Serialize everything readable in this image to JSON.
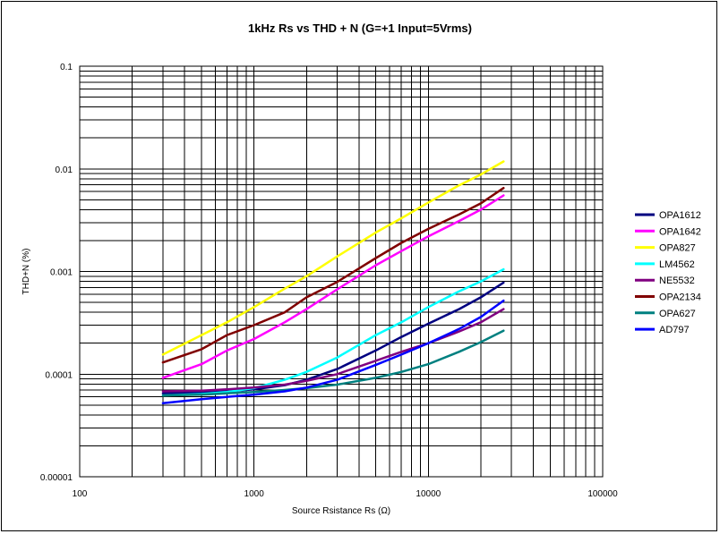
{
  "chart_data": {
    "type": "line",
    "title": "1kHz Rs vs THD + N (G=+1 Input=5Vrms)",
    "xlabel": "Source Rsistance Rs (Ω)",
    "ylabel": "THD+N (%)",
    "xscale": "log",
    "yscale": "log",
    "xlim": [
      100,
      100000
    ],
    "ylim": [
      1e-05,
      0.1
    ],
    "grid": true,
    "legend_position": "right",
    "x_ticks": [
      "100",
      "1000",
      "10000",
      "100000"
    ],
    "y_ticks": [
      "0.00001",
      "0.0001",
      "0.001",
      "0.01",
      "0.1"
    ],
    "x": [
      300,
      500,
      700,
      1000,
      1500,
      2000,
      3000,
      5000,
      7000,
      10000,
      15000,
      20000,
      27000
    ],
    "series": [
      {
        "name": "OPA1612",
        "color": "#000080",
        "values": [
          6.5e-05,
          6.6e-05,
          6.8e-05,
          7.1e-05,
          7.8e-05,
          8.8e-05,
          0.000112,
          0.00017,
          0.00023,
          0.00031,
          0.00043,
          0.00056,
          0.00078
        ]
      },
      {
        "name": "OPA1642",
        "color": "#ff00ff",
        "values": [
          9.2e-05,
          0.000125,
          0.00017,
          0.00022,
          0.00032,
          0.00043,
          0.00067,
          0.00115,
          0.00158,
          0.0022,
          0.0031,
          0.004,
          0.0055
        ]
      },
      {
        "name": "OPA827",
        "color": "#ffff00",
        "values": [
          0.000155,
          0.00024,
          0.00032,
          0.00045,
          0.00068,
          0.0009,
          0.0014,
          0.0024,
          0.0033,
          0.0047,
          0.0069,
          0.0088,
          0.0118
        ]
      },
      {
        "name": "LM4562",
        "color": "#00ffff",
        "values": [
          6.2e-05,
          6.4e-05,
          6.7e-05,
          7.3e-05,
          8.8e-05,
          0.000105,
          0.000145,
          0.00024,
          0.00032,
          0.00045,
          0.00064,
          0.0008,
          0.00105
        ]
      },
      {
        "name": "NE5532",
        "color": "#800080",
        "values": [
          6.8e-05,
          6.9e-05,
          7.1e-05,
          7.4e-05,
          7.9e-05,
          8.6e-05,
          0.0001,
          0.000135,
          0.000165,
          0.0002,
          0.00026,
          0.00032,
          0.00043
        ]
      },
      {
        "name": "OPA2134",
        "color": "#800000",
        "values": [
          0.00013,
          0.000175,
          0.00024,
          0.0003,
          0.0004,
          0.00056,
          0.00079,
          0.00135,
          0.0019,
          0.0026,
          0.0036,
          0.0046,
          0.0065
        ]
      },
      {
        "name": "OPA627",
        "color": "#008080",
        "values": [
          6.2e-05,
          6.3e-05,
          6.5e-05,
          6.7e-05,
          7e-05,
          7.3e-05,
          7.9e-05,
          9.2e-05,
          0.000105,
          0.000125,
          0.000165,
          0.000205,
          0.000265
        ]
      },
      {
        "name": "AD797",
        "color": "#0000ff",
        "values": [
          5.2e-05,
          5.7e-05,
          6e-05,
          6.3e-05,
          6.8e-05,
          7.4e-05,
          8.8e-05,
          0.000123,
          0.000155,
          0.0002,
          0.000275,
          0.00036,
          0.00052
        ]
      }
    ]
  }
}
